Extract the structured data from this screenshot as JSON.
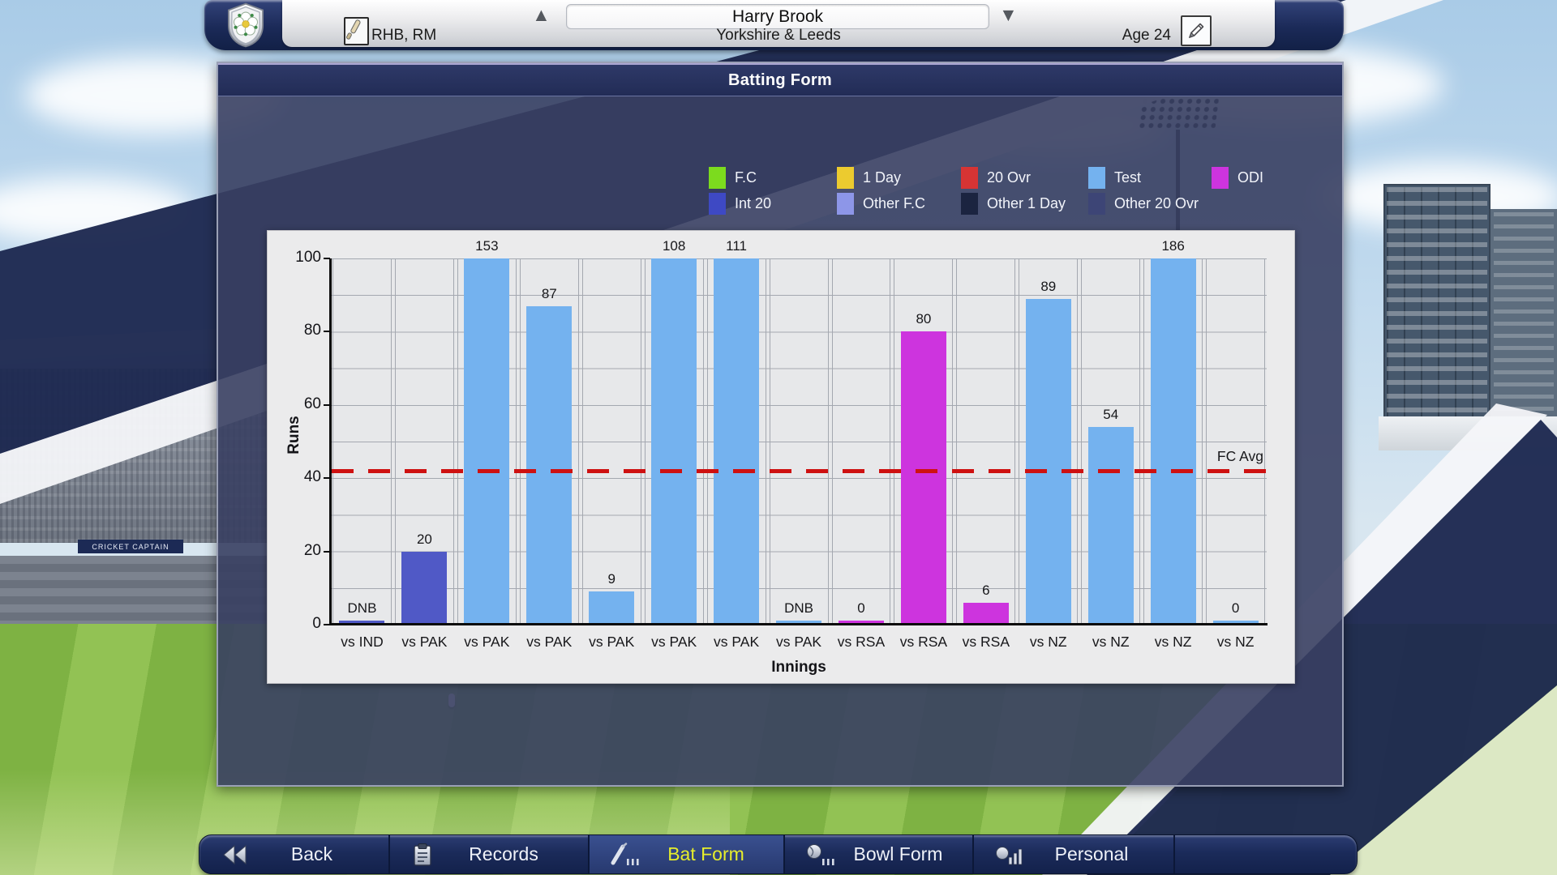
{
  "player_header": {
    "name": "Harry Brook",
    "style": "RHB, RM",
    "team": "Yorkshire & Leeds",
    "age": "Age 24"
  },
  "panel_title": "Batting Form",
  "legend": {
    "row1": [
      {
        "label": "F.C",
        "color": "#7cdb1e"
      },
      {
        "label": "1 Day",
        "color": "#eccb2f"
      },
      {
        "label": "20 Ovr",
        "color": "#d63434"
      },
      {
        "label": "Test",
        "color": "#74b2ef"
      },
      {
        "label": "ODI",
        "color": "#cd34de"
      }
    ],
    "row2": [
      {
        "label": "Int 20",
        "color": "#3e49c4"
      },
      {
        "label": "Other F.C",
        "color": "#8d96e8"
      },
      {
        "label": "Other 1 Day",
        "color": "#1b2440"
      },
      {
        "label": "Other 20 Ovr",
        "color": "#3d4576"
      }
    ]
  },
  "chart_data": {
    "type": "bar",
    "title": "Batting Form",
    "xlabel": "Innings",
    "ylabel": "Runs",
    "ylim": [
      0,
      100
    ],
    "yticks": [
      0,
      20,
      40,
      60,
      80,
      100
    ],
    "grid": true,
    "avg_line": {
      "label": "FC Avg",
      "value": 42,
      "color": "#ce1111"
    },
    "series_colors": {
      "F.C": "#7cdb1e",
      "1 Day": "#eccb2f",
      "20 Ovr": "#d63434",
      "Test": "#74b2ef",
      "ODI": "#cd34de",
      "Int 20": "#5059c6",
      "Other F.C": "#8d96e8",
      "Other 1 Day": "#1b2440",
      "Other 20 Ovr": "#3d4576"
    },
    "bars": [
      {
        "category": "vs IND",
        "value": null,
        "label": "DNB",
        "series": "Int 20"
      },
      {
        "category": "vs PAK",
        "value": 20,
        "label": "20",
        "series": "Int 20"
      },
      {
        "category": "vs PAK",
        "value": 153,
        "label": "153",
        "series": "Test"
      },
      {
        "category": "vs PAK",
        "value": 87,
        "label": "87",
        "series": "Test"
      },
      {
        "category": "vs PAK",
        "value": 9,
        "label": "9",
        "series": "Test"
      },
      {
        "category": "vs PAK",
        "value": 108,
        "label": "108",
        "series": "Test"
      },
      {
        "category": "vs PAK",
        "value": 111,
        "label": "111",
        "series": "Test"
      },
      {
        "category": "vs PAK",
        "value": null,
        "label": "DNB",
        "series": "Test"
      },
      {
        "category": "vs RSA",
        "value": 0,
        "label": "0",
        "series": "ODI"
      },
      {
        "category": "vs RSA",
        "value": 80,
        "label": "80",
        "series": "ODI"
      },
      {
        "category": "vs RSA",
        "value": 6,
        "label": "6",
        "series": "ODI"
      },
      {
        "category": "vs NZ",
        "value": 89,
        "label": "89",
        "series": "Test"
      },
      {
        "category": "vs NZ",
        "value": 54,
        "label": "54",
        "series": "Test"
      },
      {
        "category": "vs NZ",
        "value": 186,
        "label": "186",
        "series": "Test"
      },
      {
        "category": "vs NZ",
        "value": 0,
        "label": "0",
        "series": "Test"
      }
    ]
  },
  "nav": {
    "items": [
      {
        "label": "Back",
        "selected": false
      },
      {
        "label": "Records",
        "selected": false
      },
      {
        "label": "Bat Form",
        "selected": true
      },
      {
        "label": "Bowl Form",
        "selected": false
      },
      {
        "label": "Personal",
        "selected": false
      }
    ]
  },
  "background": {
    "adboard_text": "CRICKET CAPTAIN"
  }
}
